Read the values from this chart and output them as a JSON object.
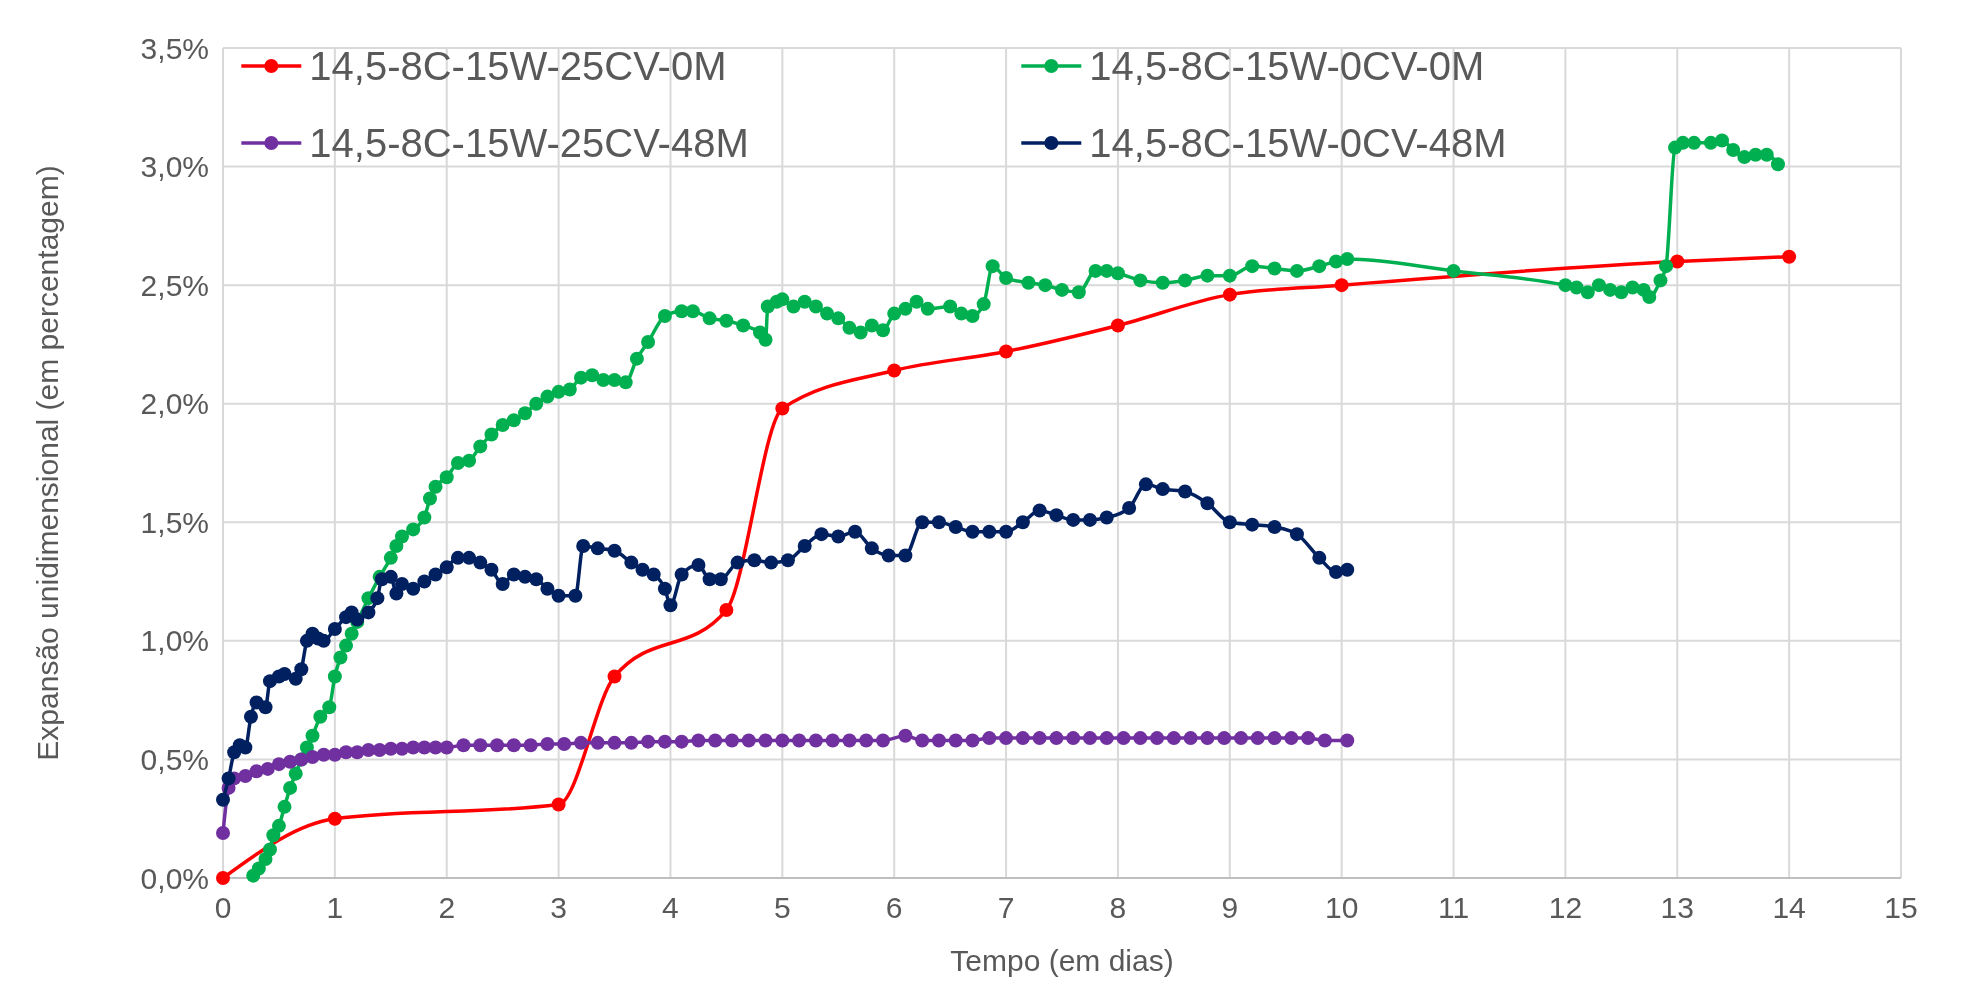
{
  "chart_data": {
    "type": "line",
    "xlabel": "Tempo (em dias)",
    "ylabel": "Expansão unidimensional (em percentagem)",
    "xlim": [
      0,
      15
    ],
    "xticks": [
      0,
      1,
      2,
      3,
      4,
      5,
      6,
      7,
      8,
      9,
      10,
      11,
      12,
      13,
      14,
      15
    ],
    "ylim": [
      0,
      3.5
    ],
    "yticks": [
      {
        "value": 0,
        "label": "0,0%"
      },
      {
        "value": 0.5,
        "label": "0,5%"
      },
      {
        "value": 1,
        "label": "1,0%"
      },
      {
        "value": 1.5,
        "label": "1,5%"
      },
      {
        "value": 2,
        "label": "2,0%"
      },
      {
        "value": 2.5,
        "label": "2,5%"
      },
      {
        "value": 3,
        "label": "3,0%"
      },
      {
        "value": 3.5,
        "label": "3,5%"
      }
    ],
    "grid": true,
    "legend": "top",
    "marker": "circle",
    "line_style": "solid",
    "series": [
      {
        "name": "14,5-8C-15W-25CV-0M",
        "color": "#ff0000",
        "x": [
          0,
          1,
          3,
          3.5,
          4.5,
          5,
          6,
          7,
          8,
          9,
          10,
          13,
          14
        ],
        "values": [
          0,
          0.25,
          0.31,
          0.85,
          1.13,
          1.98,
          2.14,
          2.22,
          2.33,
          2.46,
          2.5,
          2.6,
          2.62
        ]
      },
      {
        "name": "14,5-8C-15W-0CV-0M",
        "color": "#00b050",
        "x": [
          0.27,
          0.32,
          0.38,
          0.42,
          0.45,
          0.5,
          0.55,
          0.6,
          0.65,
          0.7,
          0.75,
          0.8,
          0.87,
          0.95,
          1.0,
          1.05,
          1.1,
          1.15,
          1.2,
          1.3,
          1.4,
          1.5,
          1.55,
          1.6,
          1.7,
          1.8,
          1.85,
          1.9,
          2.0,
          2.1,
          2.2,
          2.3,
          2.4,
          2.5,
          2.6,
          2.7,
          2.8,
          2.9,
          3.0,
          3.1,
          3.2,
          3.3,
          3.4,
          3.5,
          3.6,
          3.7,
          3.8,
          3.95,
          4.1,
          4.2,
          4.35,
          4.5,
          4.65,
          4.8,
          4.85,
          4.87,
          4.95,
          5.0,
          5.1,
          5.2,
          5.3,
          5.4,
          5.5,
          5.6,
          5.7,
          5.8,
          5.9,
          6.0,
          6.1,
          6.2,
          6.3,
          6.5,
          6.6,
          6.7,
          6.8,
          6.88,
          7.0,
          7.2,
          7.35,
          7.5,
          7.65,
          7.8,
          7.9,
          8.0,
          8.2,
          8.4,
          8.6,
          8.8,
          9.0,
          9.2,
          9.4,
          9.6,
          9.8,
          9.95,
          10.05,
          11.0,
          12.0,
          12.1,
          12.2,
          12.3,
          12.4,
          12.5,
          12.6,
          12.7,
          12.75,
          12.85,
          12.9,
          12.98,
          13.05,
          13.15,
          13.3,
          13.4,
          13.5,
          13.6,
          13.7,
          13.8,
          13.9
        ],
        "values": [
          0.01,
          0.04,
          0.08,
          0.12,
          0.18,
          0.22,
          0.3,
          0.38,
          0.44,
          0.5,
          0.55,
          0.6,
          0.68,
          0.72,
          0.85,
          0.93,
          0.98,
          1.03,
          1.08,
          1.18,
          1.27,
          1.35,
          1.4,
          1.44,
          1.47,
          1.52,
          1.6,
          1.65,
          1.69,
          1.75,
          1.76,
          1.82,
          1.87,
          1.91,
          1.93,
          1.96,
          2.0,
          2.03,
          2.05,
          2.06,
          2.11,
          2.12,
          2.1,
          2.1,
          2.09,
          2.19,
          2.26,
          2.37,
          2.39,
          2.39,
          2.36,
          2.35,
          2.33,
          2.3,
          2.27,
          2.41,
          2.43,
          2.44,
          2.41,
          2.43,
          2.41,
          2.38,
          2.36,
          2.32,
          2.3,
          2.33,
          2.31,
          2.38,
          2.4,
          2.43,
          2.4,
          2.41,
          2.38,
          2.37,
          2.42,
          2.58,
          2.53,
          2.51,
          2.5,
          2.48,
          2.47,
          2.56,
          2.56,
          2.55,
          2.52,
          2.51,
          2.52,
          2.54,
          2.54,
          2.58,
          2.57,
          2.56,
          2.58,
          2.6,
          2.61,
          2.56,
          2.5,
          2.49,
          2.47,
          2.5,
          2.48,
          2.47,
          2.49,
          2.48,
          2.45,
          2.52,
          2.58,
          3.08,
          3.1,
          3.1,
          3.1,
          3.11,
          3.07,
          3.04,
          3.05,
          3.05,
          3.01
        ]
      },
      {
        "name": "14,5-8C-15W-25CV-48M",
        "color": "#7030a0",
        "x": [
          0,
          0.05,
          0.1,
          0.2,
          0.3,
          0.4,
          0.5,
          0.6,
          0.7,
          0.8,
          0.9,
          1.0,
          1.1,
          1.2,
          1.3,
          1.4,
          1.5,
          1.6,
          1.7,
          1.8,
          1.9,
          2.0,
          2.15,
          2.3,
          2.45,
          2.6,
          2.75,
          2.9,
          3.05,
          3.2,
          3.35,
          3.5,
          3.65,
          3.8,
          3.95,
          4.1,
          4.25,
          4.4,
          4.55,
          4.7,
          4.85,
          5.0,
          5.15,
          5.3,
          5.45,
          5.6,
          5.75,
          5.9,
          6.1,
          6.25,
          6.4,
          6.55,
          6.7,
          6.85,
          7.0,
          7.15,
          7.3,
          7.45,
          7.6,
          7.75,
          7.9,
          8.05,
          8.2,
          8.35,
          8.5,
          8.65,
          8.8,
          8.95,
          9.1,
          9.25,
          9.4,
          9.55,
          9.7,
          9.85,
          10.05
        ],
        "values": [
          0.19,
          0.38,
          0.42,
          0.43,
          0.45,
          0.46,
          0.48,
          0.49,
          0.5,
          0.51,
          0.52,
          0.52,
          0.53,
          0.53,
          0.54,
          0.54,
          0.545,
          0.545,
          0.55,
          0.55,
          0.55,
          0.55,
          0.56,
          0.56,
          0.56,
          0.56,
          0.56,
          0.565,
          0.565,
          0.57,
          0.57,
          0.57,
          0.57,
          0.575,
          0.575,
          0.575,
          0.58,
          0.58,
          0.58,
          0.58,
          0.58,
          0.58,
          0.58,
          0.58,
          0.58,
          0.58,
          0.58,
          0.58,
          0.6,
          0.58,
          0.58,
          0.58,
          0.58,
          0.59,
          0.59,
          0.59,
          0.59,
          0.59,
          0.59,
          0.59,
          0.59,
          0.59,
          0.59,
          0.59,
          0.59,
          0.59,
          0.59,
          0.59,
          0.59,
          0.59,
          0.59,
          0.59,
          0.59,
          0.58,
          0.58
        ]
      },
      {
        "name": "14,5-8C-15W-0CV-48M",
        "color": "#002060",
        "x": [
          0,
          0.05,
          0.1,
          0.15,
          0.2,
          0.25,
          0.3,
          0.38,
          0.42,
          0.5,
          0.55,
          0.65,
          0.7,
          0.75,
          0.8,
          0.85,
          0.9,
          1.0,
          1.1,
          1.15,
          1.2,
          1.3,
          1.38,
          1.42,
          1.5,
          1.55,
          1.6,
          1.7,
          1.8,
          1.9,
          2.0,
          2.1,
          2.2,
          2.3,
          2.4,
          2.5,
          2.6,
          2.7,
          2.8,
          2.9,
          3.0,
          3.15,
          3.22,
          3.35,
          3.5,
          3.65,
          3.75,
          3.85,
          3.95,
          4.0,
          4.1,
          4.25,
          4.35,
          4.45,
          4.6,
          4.75,
          4.9,
          5.05,
          5.2,
          5.35,
          5.5,
          5.65,
          5.8,
          5.95,
          6.1,
          6.25,
          6.4,
          6.55,
          6.7,
          6.85,
          7.0,
          7.15,
          7.3,
          7.45,
          7.6,
          7.75,
          7.9,
          8.1,
          8.25,
          8.4,
          8.6,
          8.8,
          9.0,
          9.2,
          9.4,
          9.6,
          9.8,
          9.95,
          10.05
        ],
        "values": [
          0.33,
          0.42,
          0.53,
          0.56,
          0.55,
          0.68,
          0.74,
          0.72,
          0.83,
          0.85,
          0.86,
          0.84,
          0.88,
          1.0,
          1.03,
          1.01,
          1.0,
          1.05,
          1.1,
          1.12,
          1.09,
          1.12,
          1.18,
          1.26,
          1.27,
          1.2,
          1.24,
          1.22,
          1.25,
          1.28,
          1.31,
          1.35,
          1.35,
          1.33,
          1.3,
          1.24,
          1.28,
          1.27,
          1.26,
          1.22,
          1.19,
          1.19,
          1.4,
          1.39,
          1.38,
          1.33,
          1.3,
          1.28,
          1.22,
          1.15,
          1.28,
          1.32,
          1.26,
          1.26,
          1.33,
          1.34,
          1.33,
          1.34,
          1.4,
          1.45,
          1.44,
          1.46,
          1.39,
          1.36,
          1.36,
          1.5,
          1.5,
          1.48,
          1.46,
          1.46,
          1.46,
          1.5,
          1.55,
          1.53,
          1.51,
          1.51,
          1.52,
          1.56,
          1.66,
          1.64,
          1.63,
          1.58,
          1.5,
          1.49,
          1.48,
          1.45,
          1.35,
          1.29,
          1.3
        ]
      }
    ]
  }
}
